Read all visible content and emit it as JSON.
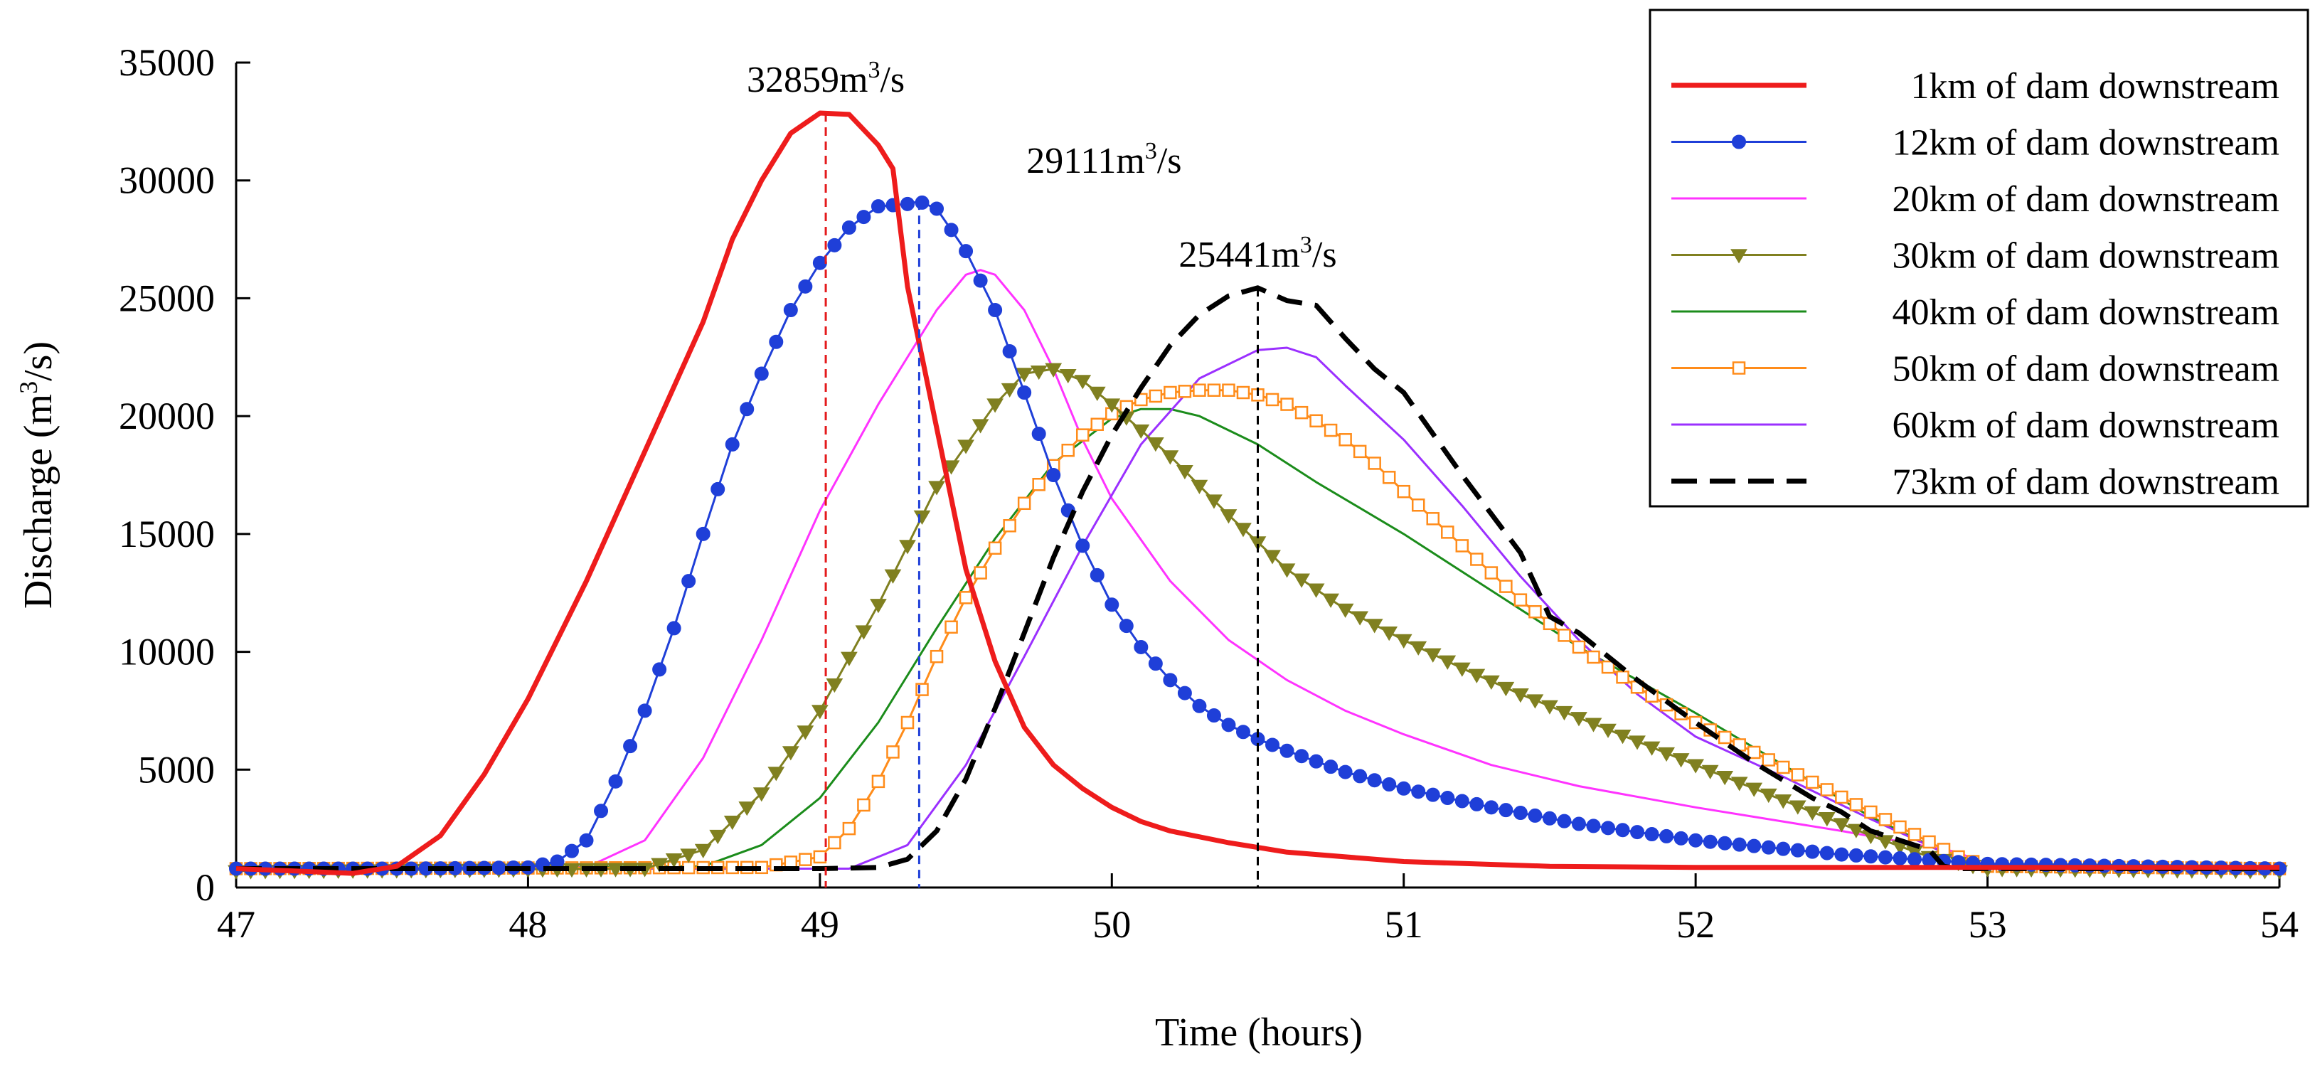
{
  "chart_data": {
    "type": "line",
    "xlabel": "Time (hours)",
    "ylabel_main": "Discharge (m",
    "ylabel_sup": "3",
    "ylabel_tail": "/s)",
    "xlim": [
      47,
      54
    ],
    "ylim": [
      0,
      35000
    ],
    "xticks": [
      47,
      48,
      49,
      50,
      51,
      52,
      53,
      54
    ],
    "yticks": [
      0,
      5000,
      10000,
      15000,
      20000,
      25000,
      30000,
      35000
    ],
    "grid": false,
    "legend_position": "top-right",
    "annotations": [
      {
        "x": 49.02,
        "y": 32859,
        "main": "32859m",
        "sup": "3",
        "tail": "/s",
        "color": "#e41a1c"
      },
      {
        "x": 49.34,
        "y": 29111,
        "main": "29111m",
        "sup": "3",
        "tail": "/s",
        "color": "#1f3fd8"
      },
      {
        "x": 50.5,
        "y": 25441,
        "main": "25441m",
        "sup": "3",
        "tail": "/s",
        "color": "#000000"
      }
    ],
    "series": [
      {
        "name": "1km of dam downstream",
        "color": "#ee1c1c",
        "marker": "none",
        "dash": "solid",
        "stroke": "thick",
        "x": [
          47,
          47.2,
          47.4,
          47.55,
          47.7,
          47.85,
          48,
          48.2,
          48.4,
          48.6,
          48.7,
          48.8,
          48.9,
          49.0,
          49.1,
          49.2,
          49.25,
          49.3,
          49.4,
          49.5,
          49.6,
          49.7,
          49.8,
          49.9,
          50.0,
          50.1,
          50.2,
          50.4,
          50.6,
          51.0,
          51.5,
          52.0,
          53.0,
          54.0
        ],
        "y": [
          800,
          700,
          600,
          900,
          2200,
          4800,
          8000,
          13000,
          18500,
          24000,
          27500,
          30000,
          32000,
          32859,
          32800,
          31500,
          30500,
          25500,
          19500,
          13500,
          9600,
          6800,
          5200,
          4200,
          3400,
          2800,
          2400,
          1900,
          1500,
          1100,
          900,
          850,
          850,
          850
        ]
      },
      {
        "name": "12km of dam downstream",
        "color": "#1f3fd8",
        "marker": "circle",
        "dash": "solid",
        "stroke": "thin",
        "x": [
          47,
          47.6,
          48.0,
          48.1,
          48.2,
          48.3,
          48.4,
          48.5,
          48.6,
          48.7,
          48.8,
          48.9,
          49.0,
          49.1,
          49.2,
          49.3,
          49.34,
          49.4,
          49.5,
          49.6,
          49.7,
          49.8,
          49.9,
          50.0,
          50.1,
          50.2,
          50.3,
          50.4,
          50.5,
          50.6,
          50.8,
          51.0,
          51.3,
          51.6,
          52.0,
          52.5,
          53.0,
          54.0
        ],
        "y": [
          800,
          800,
          850,
          1100,
          2000,
          4500,
          7500,
          11000,
          15000,
          18800,
          21800,
          24500,
          26500,
          28000,
          28900,
          29000,
          29111,
          28800,
          27000,
          24500,
          21000,
          17500,
          14500,
          12000,
          10200,
          8800,
          7700,
          6900,
          6300,
          5800,
          4900,
          4200,
          3400,
          2700,
          2000,
          1400,
          1000,
          800
        ]
      },
      {
        "name": "20km of dam downstream",
        "color": "#ff33ff",
        "marker": "none",
        "dash": "solid",
        "stroke": "thin",
        "x": [
          47,
          48.2,
          48.4,
          48.6,
          48.8,
          49.0,
          49.2,
          49.4,
          49.5,
          49.55,
          49.6,
          49.7,
          49.8,
          49.9,
          50.0,
          50.2,
          50.4,
          50.6,
          50.8,
          51.0,
          51.3,
          51.6,
          52.0,
          52.5,
          52.9,
          53.0,
          54.0
        ],
        "y": [
          800,
          850,
          2000,
          5500,
          10500,
          16000,
          20500,
          24500,
          26000,
          26200,
          26000,
          24500,
          22000,
          19000,
          16500,
          13000,
          10500,
          8800,
          7500,
          6500,
          5200,
          4300,
          3400,
          2400,
          1500,
          900,
          800
        ]
      },
      {
        "name": "30km of dam downstream",
        "color": "#808020",
        "marker": "triangle",
        "dash": "solid",
        "stroke": "thin",
        "x": [
          47,
          48.4,
          48.6,
          48.8,
          49.0,
          49.2,
          49.4,
          49.6,
          49.7,
          49.8,
          49.9,
          50.0,
          50.2,
          50.4,
          50.6,
          50.8,
          51.0,
          51.2,
          51.4,
          51.6,
          51.8,
          52.0,
          52.2,
          52.4,
          52.6,
          52.8,
          53.0,
          54.0
        ],
        "y": [
          700,
          800,
          1600,
          4000,
          7500,
          12000,
          17000,
          20500,
          21800,
          22000,
          21500,
          20500,
          18300,
          15800,
          13500,
          11800,
          10500,
          9300,
          8200,
          7200,
          6200,
          5200,
          4200,
          3200,
          2200,
          1300,
          800,
          700
        ]
      },
      {
        "name": "40km of dam downstream",
        "color": "#1b8c1b",
        "marker": "none",
        "dash": "solid",
        "stroke": "thin",
        "x": [
          47,
          48.6,
          48.8,
          49.0,
          49.2,
          49.4,
          49.6,
          49.8,
          50.0,
          50.1,
          50.2,
          50.3,
          50.5,
          50.7,
          51.0,
          51.3,
          51.6,
          52.0,
          52.3,
          52.6,
          52.9,
          53.0,
          54.0
        ],
        "y": [
          800,
          900,
          1800,
          3800,
          7000,
          11000,
          14800,
          18000,
          19900,
          20300,
          20300,
          20000,
          18800,
          17200,
          15000,
          12600,
          10200,
          7400,
          5200,
          3000,
          1200,
          900,
          800
        ]
      },
      {
        "name": "50km of dam downstream",
        "color": "#ff8c1a",
        "marker": "square",
        "dash": "solid",
        "stroke": "thin",
        "x": [
          47,
          48.8,
          49.0,
          49.1,
          49.2,
          49.3,
          49.4,
          49.5,
          49.6,
          49.7,
          49.8,
          49.9,
          50.0,
          50.1,
          50.2,
          50.3,
          50.4,
          50.5,
          50.6,
          50.7,
          50.8,
          50.9,
          51.0,
          51.2,
          51.4,
          51.6,
          51.8,
          52.0,
          52.3,
          52.6,
          52.9,
          53.0,
          54.0
        ],
        "y": [
          800,
          850,
          1300,
          2500,
          4500,
          7000,
          9800,
          12300,
          14400,
          16300,
          17900,
          19200,
          20100,
          20700,
          21000,
          21100,
          21100,
          20900,
          20500,
          19800,
          19000,
          18000,
          16800,
          14500,
          12200,
          10200,
          8500,
          7000,
          5100,
          3200,
          1300,
          900,
          800
        ]
      },
      {
        "name": "60km of dam downstream",
        "color": "#9b30ff",
        "marker": "none",
        "dash": "solid",
        "stroke": "thin",
        "x": [
          47,
          49.1,
          49.3,
          49.5,
          49.7,
          49.9,
          50.1,
          50.3,
          50.5,
          50.6,
          50.7,
          50.8,
          51.0,
          51.2,
          51.4,
          51.6,
          51.8,
          52.0,
          52.3,
          52.6,
          52.9,
          53.0,
          54.0
        ],
        "y": [
          800,
          800,
          1800,
          5200,
          9800,
          14500,
          18800,
          21600,
          22800,
          22900,
          22500,
          21300,
          19000,
          16200,
          13200,
          10500,
          8200,
          6400,
          4700,
          2900,
          1200,
          900,
          800
        ]
      },
      {
        "name": "73km of dam downstream",
        "color": "#000000",
        "marker": "none",
        "dash": "dashed",
        "stroke": "thick",
        "x": [
          47,
          49.0,
          49.2,
          49.3,
          49.4,
          49.5,
          49.6,
          49.7,
          49.8,
          49.9,
          50.0,
          50.1,
          50.2,
          50.3,
          50.4,
          50.5,
          50.6,
          50.7,
          50.8,
          50.9,
          51.0,
          51.2,
          51.4,
          51.5,
          51.6,
          51.8,
          52.0,
          52.2,
          52.4,
          52.5,
          52.6,
          52.8,
          52.85,
          52.9,
          53.0,
          54.0
        ],
        "y": [
          800,
          800,
          850,
          1200,
          2400,
          4600,
          7600,
          10800,
          14000,
          16800,
          19200,
          21200,
          23000,
          24300,
          25100,
          25441,
          24900,
          24700,
          23300,
          22000,
          21000,
          17500,
          14200,
          11500,
          10800,
          8800,
          7000,
          5300,
          3800,
          3200,
          2400,
          1600,
          900,
          800,
          800,
          800
        ]
      }
    ]
  }
}
